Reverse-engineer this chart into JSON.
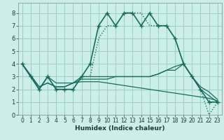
{
  "title": "",
  "xlabel": "Humidex (Indice chaleur)",
  "bg_color": "#cceee8",
  "grid_color": "#99cccc",
  "line_color": "#1a6b5e",
  "xlim": [
    -0.5,
    23.5
  ],
  "ylim": [
    0,
    8.8
  ],
  "xticks": [
    0,
    1,
    2,
    3,
    4,
    5,
    6,
    7,
    8,
    9,
    10,
    11,
    12,
    13,
    14,
    15,
    16,
    17,
    18,
    19,
    20,
    21,
    22,
    23
  ],
  "yticks": [
    0,
    1,
    2,
    3,
    4,
    5,
    6,
    7,
    8
  ],
  "lines": [
    {
      "x": [
        0,
        1,
        2,
        3,
        4,
        5,
        6,
        7,
        8,
        9,
        10,
        11,
        12,
        13,
        14,
        15,
        16,
        17,
        18,
        19,
        20,
        21,
        22,
        23
      ],
      "y": [
        4,
        3,
        2,
        3,
        2,
        2,
        2,
        3,
        4,
        7,
        8,
        7,
        8,
        8,
        7,
        8,
        7,
        7,
        6,
        4,
        3,
        2,
        1,
        1
      ],
      "marker": "+",
      "linestyle": "-",
      "linewidth": 1.2,
      "markersize": 4
    },
    {
      "x": [
        0,
        1,
        2,
        3,
        4,
        5,
        6,
        7,
        8,
        9,
        10,
        11,
        12,
        13,
        14,
        15,
        16,
        17,
        18,
        19,
        20,
        21,
        22,
        23
      ],
      "y": [
        4,
        3,
        2,
        3,
        2,
        2,
        2,
        3,
        3,
        6,
        7,
        7,
        8,
        8,
        8,
        7,
        7,
        7,
        6,
        4,
        3,
        2,
        0,
        1
      ],
      "marker": null,
      "linestyle": ":",
      "linewidth": 1.0,
      "markersize": 0
    },
    {
      "x": [
        0,
        2,
        3,
        4,
        5,
        6,
        7,
        8,
        9,
        10,
        11,
        12,
        13,
        14,
        15,
        16,
        17,
        18,
        19,
        20,
        21,
        22,
        23
      ],
      "y": [
        4,
        2,
        3,
        2.5,
        2.5,
        2.5,
        3,
        3,
        3,
        3,
        3,
        3.0,
        3.0,
        3.0,
        3.0,
        3.2,
        3.5,
        3.5,
        4,
        3,
        2.0,
        1.5,
        1.0
      ],
      "marker": null,
      "linestyle": "-",
      "linewidth": 0.9,
      "markersize": 0
    },
    {
      "x": [
        0,
        2,
        3,
        4,
        5,
        6,
        7,
        8,
        9,
        10,
        11,
        12,
        13,
        14,
        15,
        16,
        17,
        18,
        19,
        20,
        21,
        22,
        23
      ],
      "y": [
        4,
        2.2,
        2.5,
        2.2,
        2.2,
        2.5,
        2.8,
        2.8,
        2.8,
        2.8,
        3.0,
        3.0,
        3.0,
        3.0,
        3.0,
        3.2,
        3.5,
        3.8,
        4,
        3,
        2.2,
        1.8,
        1.2
      ],
      "marker": null,
      "linestyle": "-",
      "linewidth": 0.9,
      "markersize": 0
    },
    {
      "x": [
        0,
        2,
        3,
        4,
        5,
        6,
        7,
        8,
        9,
        10,
        11,
        12,
        13,
        14,
        15,
        16,
        17,
        18,
        19,
        20,
        21,
        22,
        23
      ],
      "y": [
        4,
        2.2,
        2.5,
        2.2,
        2.2,
        2.5,
        2.6,
        2.6,
        2.6,
        2.5,
        2.4,
        2.3,
        2.2,
        2.1,
        2.0,
        1.9,
        1.8,
        1.7,
        1.6,
        1.5,
        1.4,
        1.3,
        1.1
      ],
      "marker": null,
      "linestyle": "-",
      "linewidth": 0.9,
      "markersize": 0
    }
  ]
}
